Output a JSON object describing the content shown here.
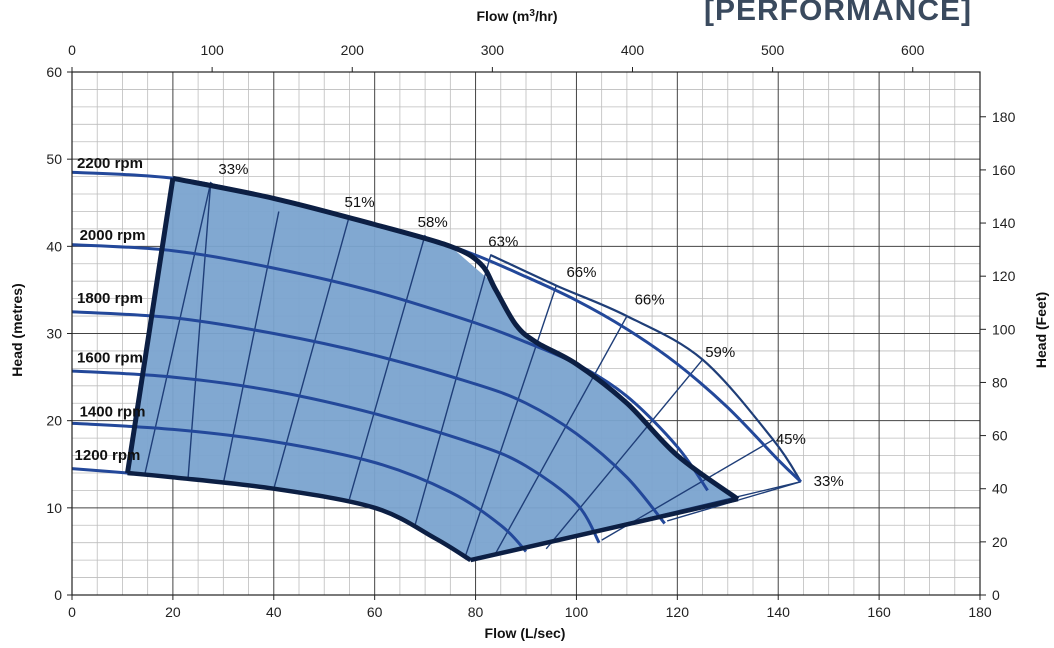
{
  "chart_data": {
    "type": "line",
    "badge": "[PERFORMANCE]",
    "xlabel": "Flow (L/sec)",
    "x2label": "Flow (m",
    "x2label_sup": "3",
    "x2label_tail": "/hr)",
    "ylabel": "Head (metres)",
    "y2label": "Head (Feet)",
    "xlim": [
      0,
      180
    ],
    "ylim": [
      0,
      60
    ],
    "x2lim": [
      0,
      648
    ],
    "y2lim": [
      0,
      196.85
    ],
    "x_ticks": [
      "0",
      "20",
      "40",
      "60",
      "80",
      "100",
      "120",
      "140",
      "160",
      "180"
    ],
    "y_ticks": [
      "0",
      "10",
      "20",
      "30",
      "40",
      "50",
      "60"
    ],
    "x2_ticks": [
      "0",
      "100",
      "200",
      "300",
      "400",
      "500",
      "600"
    ],
    "y2_ticks": [
      "0",
      "20",
      "40",
      "60",
      "80",
      "100",
      "120",
      "140",
      "160",
      "180"
    ],
    "grid": true,
    "operating_region": [
      [
        11,
        14
      ],
      [
        20,
        47.8
      ],
      [
        40,
        45.5
      ],
      [
        60,
        42.5
      ],
      [
        75,
        40
      ],
      [
        83,
        36
      ],
      [
        89,
        30
      ],
      [
        100,
        26.5
      ],
      [
        110,
        22
      ],
      [
        120,
        16
      ],
      [
        132,
        11
      ],
      [
        79,
        4
      ],
      [
        72,
        6.5
      ],
      [
        60,
        10
      ],
      [
        40,
        12.2
      ],
      [
        20,
        13.5
      ],
      [
        11,
        14
      ]
    ],
    "series": [
      {
        "name": "2200 rpm",
        "points": [
          [
            0,
            48.5
          ],
          [
            20,
            47.8
          ],
          [
            40,
            45.5
          ],
          [
            60,
            42.5
          ],
          [
            70,
            41
          ],
          [
            80,
            39
          ],
          [
            90,
            36.5
          ],
          [
            100,
            33.8
          ],
          [
            110,
            30.5
          ],
          [
            120,
            26.5
          ],
          [
            130,
            21.5
          ],
          [
            140,
            15.5
          ],
          [
            144.5,
            13
          ]
        ]
      },
      {
        "name": "2000 rpm",
        "points": [
          [
            0,
            40.2
          ],
          [
            20,
            39.5
          ],
          [
            40,
            37.5
          ],
          [
            60,
            34.8
          ],
          [
            80,
            31.2
          ],
          [
            90,
            29
          ],
          [
            100,
            26.5
          ],
          [
            110,
            22.8
          ],
          [
            120,
            17
          ],
          [
            126,
            12
          ]
        ]
      },
      {
        "name": "1800 rpm",
        "points": [
          [
            0,
            32.5
          ],
          [
            20,
            31.8
          ],
          [
            40,
            30
          ],
          [
            60,
            27.5
          ],
          [
            80,
            24.2
          ],
          [
            90,
            22
          ],
          [
            100,
            18.5
          ],
          [
            110,
            13.5
          ],
          [
            117.5,
            8.2
          ]
        ]
      },
      {
        "name": "1600 rpm",
        "points": [
          [
            0,
            25.7
          ],
          [
            20,
            25
          ],
          [
            40,
            23.4
          ],
          [
            60,
            20.8
          ],
          [
            80,
            17.3
          ],
          [
            90,
            14.8
          ],
          [
            100,
            10.5
          ],
          [
            104.5,
            6
          ]
        ]
      },
      {
        "name": "1400 rpm",
        "points": [
          [
            0,
            19.7
          ],
          [
            20,
            19
          ],
          [
            40,
            17.6
          ],
          [
            60,
            15.2
          ],
          [
            75,
            11.8
          ],
          [
            85,
            8
          ],
          [
            90,
            5
          ]
        ]
      },
      {
        "name": "1200 rpm",
        "points": [
          [
            0,
            14.5
          ],
          [
            11,
            14
          ],
          [
            20,
            13.5
          ],
          [
            40,
            12.2
          ],
          [
            60,
            10
          ],
          [
            70,
            7.2
          ],
          [
            79,
            4
          ]
        ]
      }
    ],
    "efficiency_labels": [
      {
        "label": "33%",
        "x": 32,
        "y": 48.3
      },
      {
        "label": "51%",
        "x": 57,
        "y": 44.5
      },
      {
        "label": "58%",
        "x": 71.5,
        "y": 42.2
      },
      {
        "label": "63%",
        "x": 85.5,
        "y": 40
      },
      {
        "label": "66%",
        "x": 101,
        "y": 36.5
      },
      {
        "label": "66%",
        "x": 114.5,
        "y": 33.3
      },
      {
        "label": "59%",
        "x": 128.5,
        "y": 27.3
      },
      {
        "label": "45%",
        "x": 142.5,
        "y": 17.3
      },
      {
        "label": "33%",
        "x": 150,
        "y": 12.5
      }
    ],
    "rpm_label_positions": [
      {
        "x": 1,
        "y": 49
      },
      {
        "x": 1.5,
        "y": 40.7
      },
      {
        "x": 1,
        "y": 33.5
      },
      {
        "x": 1,
        "y": 26.7
      },
      {
        "x": 1.5,
        "y": 20.5
      },
      {
        "x": 0.5,
        "y": 15.5
      }
    ],
    "iso_efficiency_lines": [
      [
        [
          14.5,
          14
        ],
        [
          27.5,
          47.3
        ],
        [
          28,
          47.1
        ]
      ],
      [
        [
          23,
          13.3
        ],
        [
          27.5,
          47.3
        ]
      ],
      [
        [
          30,
          12.8
        ],
        [
          41,
          44
        ]
      ],
      [
        [
          40,
          12.2
        ],
        [
          55,
          43.5
        ]
      ],
      [
        [
          55,
          11
        ],
        [
          70,
          41.3
        ]
      ],
      [
        [
          68,
          8
        ],
        [
          83,
          39
        ],
        [
          84,
          38.7
        ]
      ],
      [
        [
          78,
          4.5
        ],
        [
          96,
          35.5
        ]
      ],
      [
        [
          84,
          4.8
        ],
        [
          110,
          32
        ]
      ],
      [
        [
          94,
          5.3
        ],
        [
          125,
          27
        ]
      ],
      [
        [
          105,
          6.3
        ],
        [
          139,
          17.8
        ]
      ],
      [
        [
          118,
          8.5
        ],
        [
          144.5,
          13
        ]
      ]
    ]
  }
}
